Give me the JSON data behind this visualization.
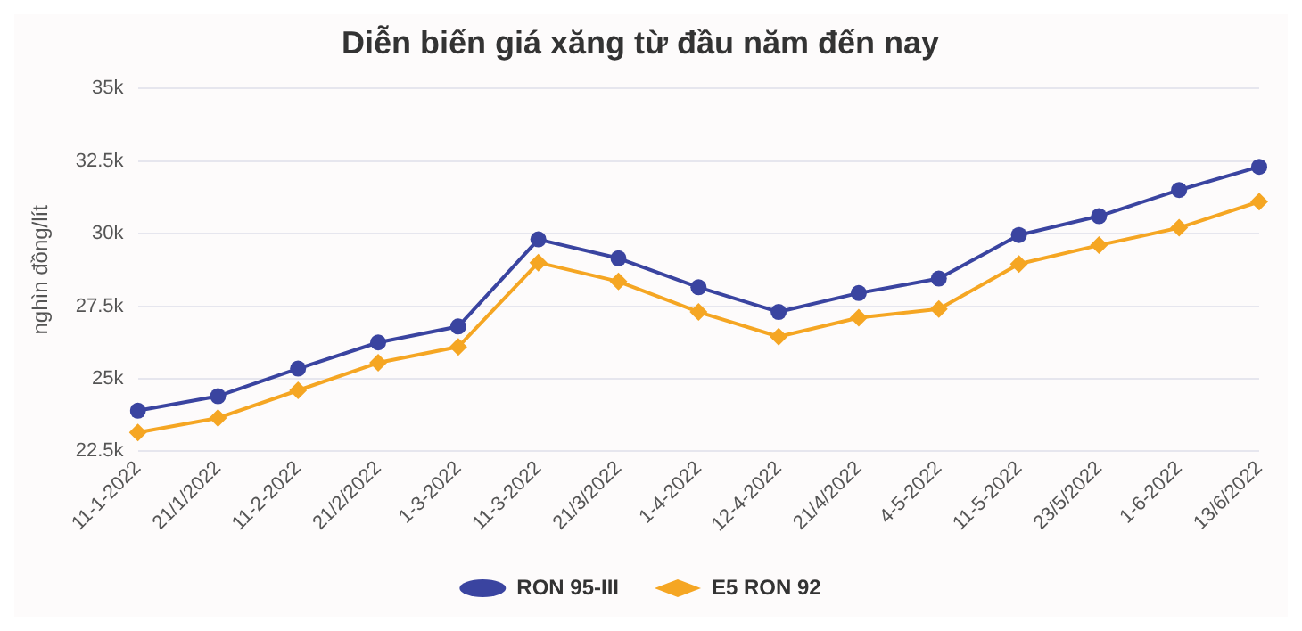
{
  "chart_data": {
    "type": "line",
    "title": "Diễn biến giá xăng từ đầu năm đến nay",
    "ylabel": "nghìn đồng/lít",
    "categories": [
      "11-1-2022",
      "21/1/2022",
      "11-2-2022",
      "21/2/2022",
      "1-3-2022",
      "11-3-2022",
      "21/3/2022",
      "1-4-2022",
      "12-4-2022",
      "21/4/2022",
      "4-5-2022",
      "11-5-2022",
      "23/5/2022",
      "1-6-2022",
      "13/6/2022"
    ],
    "series": [
      {
        "name": "RON 95-III",
        "color": "#3a44a0",
        "marker": "circle",
        "values": [
          23900,
          24400,
          25350,
          26250,
          26800,
          29800,
          29150,
          28150,
          27300,
          27950,
          28450,
          29950,
          30600,
          31500,
          32300
        ]
      },
      {
        "name": "E5 RON 92",
        "color": "#f5a623",
        "marker": "diamond",
        "values": [
          23150,
          23650,
          24600,
          25550,
          26100,
          29000,
          28350,
          27300,
          26450,
          27100,
          27400,
          28950,
          29600,
          30200,
          31100
        ]
      }
    ],
    "ylim": [
      22500,
      35000
    ],
    "yticks": [
      {
        "value": 22500,
        "label": "22.5k"
      },
      {
        "value": 25000,
        "label": "25k"
      },
      {
        "value": 27500,
        "label": "27.5k"
      },
      {
        "value": 30000,
        "label": "30k"
      },
      {
        "value": 32500,
        "label": "32.5k"
      },
      {
        "value": 35000,
        "label": "35k"
      }
    ],
    "grid": "y",
    "legend": "bottom",
    "line_style": "solid"
  }
}
